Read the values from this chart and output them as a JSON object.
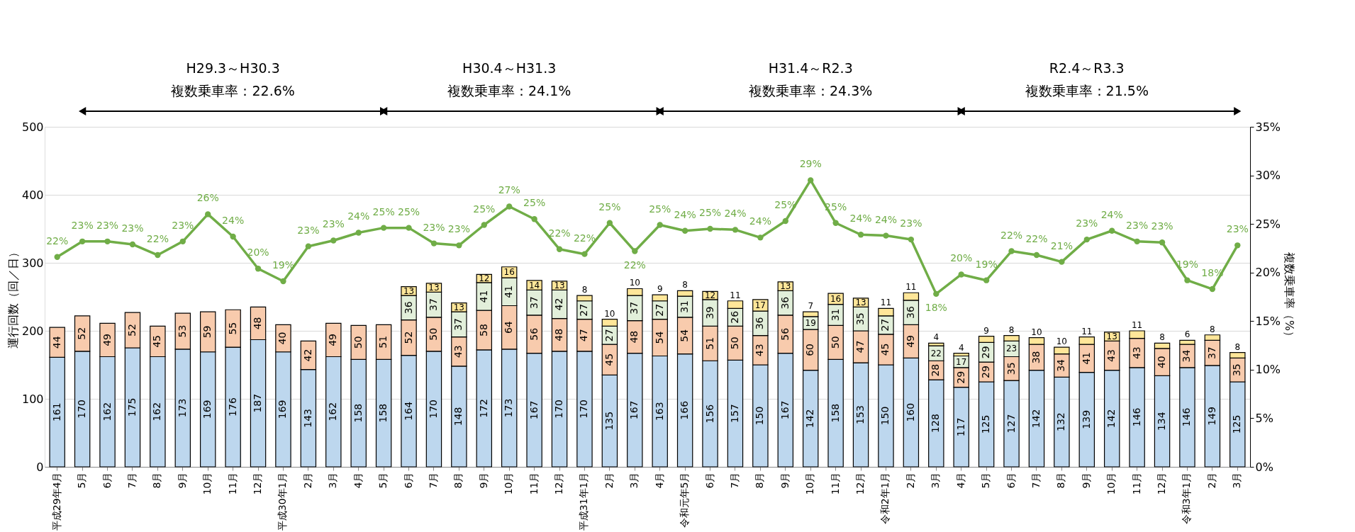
{
  "chart_data": {
    "type": "bar",
    "stacked": true,
    "data_labels": true,
    "grid": "y",
    "legend": false,
    "ylabel": "運行回数（回／日）",
    "y2label": "複数乗車率（%）",
    "ylim": [
      0,
      500
    ],
    "yticks": [
      0,
      100,
      200,
      300,
      400,
      500
    ],
    "y2lim": [
      0,
      35
    ],
    "y2ticks": [
      {
        "value": 0,
        "label": "0%"
      },
      {
        "value": 5,
        "label": "5%"
      },
      {
        "value": 10,
        "label": "10%"
      },
      {
        "value": 15,
        "label": "15%"
      },
      {
        "value": 20,
        "label": "20%"
      },
      {
        "value": 25,
        "label": "25%"
      },
      {
        "value": 30,
        "label": "30%"
      },
      {
        "value": 35,
        "label": "35%"
      }
    ],
    "annotations": [
      "H29.3～H30.3",
      "複数乗車率：22.6%",
      "H30.4～H31.3",
      "複数乗車率：24.1%",
      "H31.4～R2.3",
      "複数乗車率：24.3%",
      "R2.4～R3.3",
      "複数乗車率：21.5%"
    ],
    "categories": [
      "平成29年4月",
      "5月",
      "6月",
      "7月",
      "8月",
      "9月",
      "10月",
      "11月",
      "12月",
      "平成30年1月",
      "2月",
      "3月",
      "4月",
      "5月",
      "6月",
      "7月",
      "8月",
      "9月",
      "10月",
      "11月",
      "12月",
      "平成31年1月",
      "2月",
      "3月",
      "4月",
      "令和元年5月",
      "6月",
      "7月",
      "8月",
      "9月",
      "10月",
      "11月",
      "12月",
      "令和2年1月",
      "2月",
      "3月",
      "4月",
      "5月",
      "6月",
      "7月",
      "8月",
      "9月",
      "10月",
      "11月",
      "12月",
      "令和3年1月",
      "2月",
      "3月"
    ],
    "series": [
      {
        "type": "bar",
        "color": "#bdd7ee",
        "values": [
          161,
          170,
          162,
          175,
          162,
          173,
          169,
          176,
          187,
          169,
          143,
          162,
          158,
          158,
          164,
          170,
          148,
          172,
          173,
          167,
          170,
          170,
          135,
          167,
          163,
          166,
          156,
          157,
          150,
          167,
          142,
          158,
          153,
          150,
          160,
          128,
          117,
          125,
          127,
          142,
          132,
          139,
          142,
          146,
          134,
          146,
          149,
          125
        ]
      },
      {
        "type": "bar",
        "color": "#f8cbad",
        "values": [
          44,
          52,
          49,
          52,
          45,
          53,
          59,
          55,
          48,
          40,
          42,
          49,
          50,
          51,
          52,
          50,
          43,
          58,
          64,
          56,
          48,
          47,
          45,
          48,
          54,
          54,
          51,
          50,
          43,
          56,
          60,
          50,
          47,
          45,
          49,
          28,
          29,
          29,
          35,
          38,
          34,
          41,
          43,
          43,
          40,
          34,
          37,
          35
        ]
      },
      {
        "type": "bar",
        "color": "#e2efda",
        "values": [
          null,
          null,
          null,
          null,
          null,
          null,
          null,
          null,
          null,
          null,
          null,
          null,
          null,
          null,
          36,
          37,
          37,
          41,
          41,
          37,
          42,
          27,
          27,
          37,
          27,
          31,
          39,
          26,
          36,
          36,
          19,
          31,
          35,
          27,
          36,
          22,
          17,
          29,
          23,
          null,
          null,
          null,
          null,
          null,
          null,
          null,
          null,
          null
        ]
      },
      {
        "type": "bar",
        "color": "#ffe699",
        "values": [
          null,
          null,
          null,
          null,
          null,
          null,
          null,
          null,
          null,
          null,
          null,
          null,
          null,
          null,
          13,
          13,
          13,
          12,
          16,
          14,
          13,
          8,
          10,
          10,
          9,
          8,
          12,
          11,
          17,
          13,
          7,
          16,
          13,
          11,
          11,
          4,
          4,
          9,
          8,
          10,
          10,
          11,
          13,
          11,
          8,
          6,
          8,
          8
        ]
      },
      {
        "type": "line",
        "axis": "y2",
        "color": "#70ad47",
        "marker": "circle",
        "line_style": "solid",
        "values": [
          21.6,
          23.2,
          23.2,
          22.9,
          21.8,
          23.2,
          26.0,
          23.7,
          20.4,
          19.1,
          22.7,
          23.3,
          24.1,
          24.6,
          24.6,
          23.0,
          22.8,
          24.9,
          26.8,
          25.5,
          22.4,
          21.9,
          25.1,
          22.2,
          24.9,
          24.3,
          24.5,
          24.4,
          23.6,
          25.3,
          29.5,
          25.1,
          23.9,
          23.8,
          23.4,
          17.8,
          19.8,
          19.2,
          22.2,
          21.8,
          21.1,
          23.4,
          24.3,
          23.2,
          23.1,
          19.2,
          18.3,
          22.8
        ],
        "value_labels": [
          "22%",
          "23%",
          "23%",
          "23%",
          "22%",
          "23%",
          "26%",
          "24%",
          "20%",
          "19%",
          "23%",
          "23%",
          "24%",
          "25%",
          "25%",
          "23%",
          "23%",
          "25%",
          "27%",
          "25%",
          "22%",
          "22%",
          "25%",
          "22%",
          "25%",
          "24%",
          "25%",
          "24%",
          "24%",
          "25%",
          "29%",
          "25%",
          "24%",
          "24%",
          "23%",
          "18%",
          "20%",
          "19%",
          "22%",
          "22%",
          "21%",
          "23%",
          "24%",
          "23%",
          "23%",
          "19%",
          "18%",
          "23%"
        ]
      }
    ]
  }
}
